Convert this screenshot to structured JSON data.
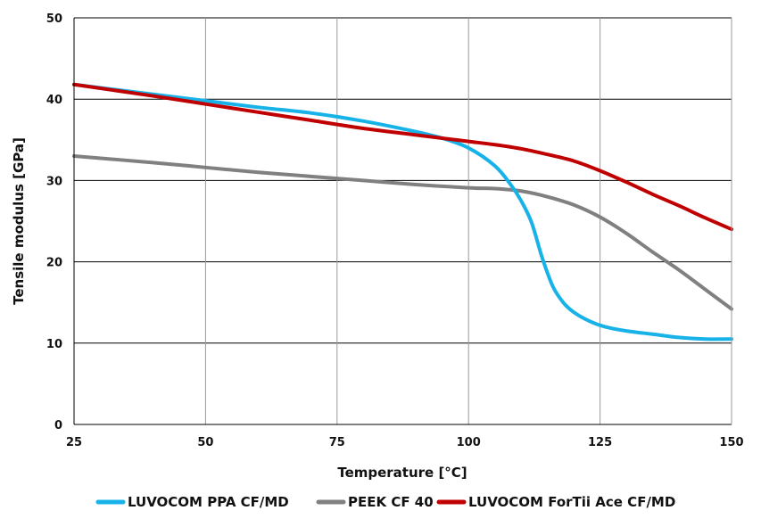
{
  "chart_data": {
    "type": "line",
    "xlabel": "Temperature [°C]",
    "ylabel": "Tensile modulus [GPa]",
    "xlim": [
      25,
      150
    ],
    "ylim": [
      0,
      50
    ],
    "xticks": [
      25,
      50,
      75,
      100,
      125,
      150
    ],
    "yticks": [
      0,
      10,
      20,
      30,
      40,
      50
    ],
    "grid": true,
    "legend_position": "bottom",
    "series": [
      {
        "name": "LUVOCOM PPA CF/MD",
        "color": "#17b3e8",
        "x": [
          25,
          40,
          50,
          60,
          70,
          80,
          90,
          95,
          100,
          105,
          108,
          110,
          112,
          114,
          116,
          118,
          120,
          123,
          126,
          130,
          135,
          140,
          145,
          150
        ],
        "y": [
          41.8,
          40.6,
          39.8,
          39.0,
          38.3,
          37.3,
          36.0,
          35.2,
          34.0,
          31.8,
          29.5,
          27.5,
          24.8,
          20.5,
          17.0,
          15.0,
          13.8,
          12.7,
          12.0,
          11.5,
          11.1,
          10.7,
          10.5,
          10.5
        ]
      },
      {
        "name": "PEEK CF 40",
        "color": "#808080",
        "x": [
          25,
          40,
          50,
          60,
          70,
          80,
          90,
          100,
          105,
          110,
          115,
          120,
          125,
          130,
          135,
          140,
          145,
          150
        ],
        "y": [
          33.0,
          32.2,
          31.6,
          31.0,
          30.5,
          30.0,
          29.5,
          29.1,
          29.0,
          28.7,
          28.0,
          27.0,
          25.5,
          23.5,
          21.2,
          19.0,
          16.6,
          14.2
        ]
      },
      {
        "name": "LUVOCOM ForTii Ace CF/MD",
        "color": "#c00000",
        "x": [
          25,
          40,
          50,
          60,
          70,
          80,
          90,
          95,
          100,
          105,
          110,
          115,
          120,
          125,
          130,
          135,
          140,
          145,
          150
        ],
        "y": [
          41.8,
          40.4,
          39.4,
          38.4,
          37.4,
          36.4,
          35.6,
          35.2,
          34.8,
          34.4,
          33.9,
          33.2,
          32.4,
          31.2,
          29.8,
          28.3,
          26.9,
          25.4,
          24.0
        ]
      }
    ]
  }
}
